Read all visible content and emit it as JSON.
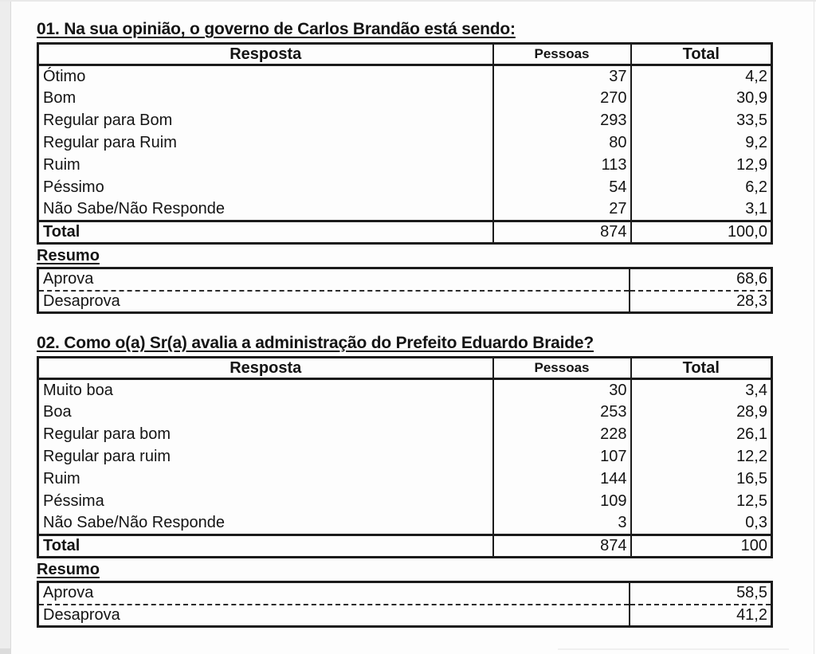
{
  "colors": {
    "border": "#1b1b1b",
    "text": "#141414",
    "page_edge": "#ededed"
  },
  "sections": [
    {
      "title": "01. Na sua opinião, o governo de Carlos Brandão está sendo:",
      "columns": [
        "Resposta",
        "Pessoas",
        "Total"
      ],
      "rows": [
        [
          "Ótimo",
          "37",
          "4,2"
        ],
        [
          "Bom",
          "270",
          "30,9"
        ],
        [
          "Regular para Bom",
          "293",
          "33,5"
        ],
        [
          "Regular para Ruim",
          "80",
          "9,2"
        ],
        [
          "Ruim",
          "113",
          "12,9"
        ],
        [
          "Péssimo",
          "54",
          "6,2"
        ],
        [
          "Não Sabe/Não Responde",
          "27",
          "3,1"
        ]
      ],
      "total_row": [
        "Total",
        "874",
        "100,0"
      ],
      "resumo_label": "Resumo",
      "resumo_rows": [
        [
          "Aprova",
          "68,6"
        ],
        [
          "Desaprova",
          "28,3"
        ]
      ]
    },
    {
      "title": "02. Como o(a) Sr(a) avalia a administração do Prefeito Eduardo Braide?",
      "columns": [
        "Resposta",
        "Pessoas",
        "Total"
      ],
      "rows": [
        [
          "Muito boa",
          "30",
          "3,4"
        ],
        [
          "Boa",
          "253",
          "28,9"
        ],
        [
          "Regular para bom",
          "228",
          "26,1"
        ],
        [
          "Regular para ruim",
          "107",
          "12,2"
        ],
        [
          "Ruim",
          "144",
          "16,5"
        ],
        [
          "Péssima",
          "109",
          "12,5"
        ],
        [
          "Não Sabe/Não Responde",
          "3",
          "0,3"
        ]
      ],
      "total_row": [
        "Total",
        "874",
        "100"
      ],
      "resumo_label": "Resumo",
      "resumo_rows": [
        [
          "Aprova",
          "58,5"
        ],
        [
          "Desaprova",
          "41,2"
        ]
      ]
    }
  ]
}
